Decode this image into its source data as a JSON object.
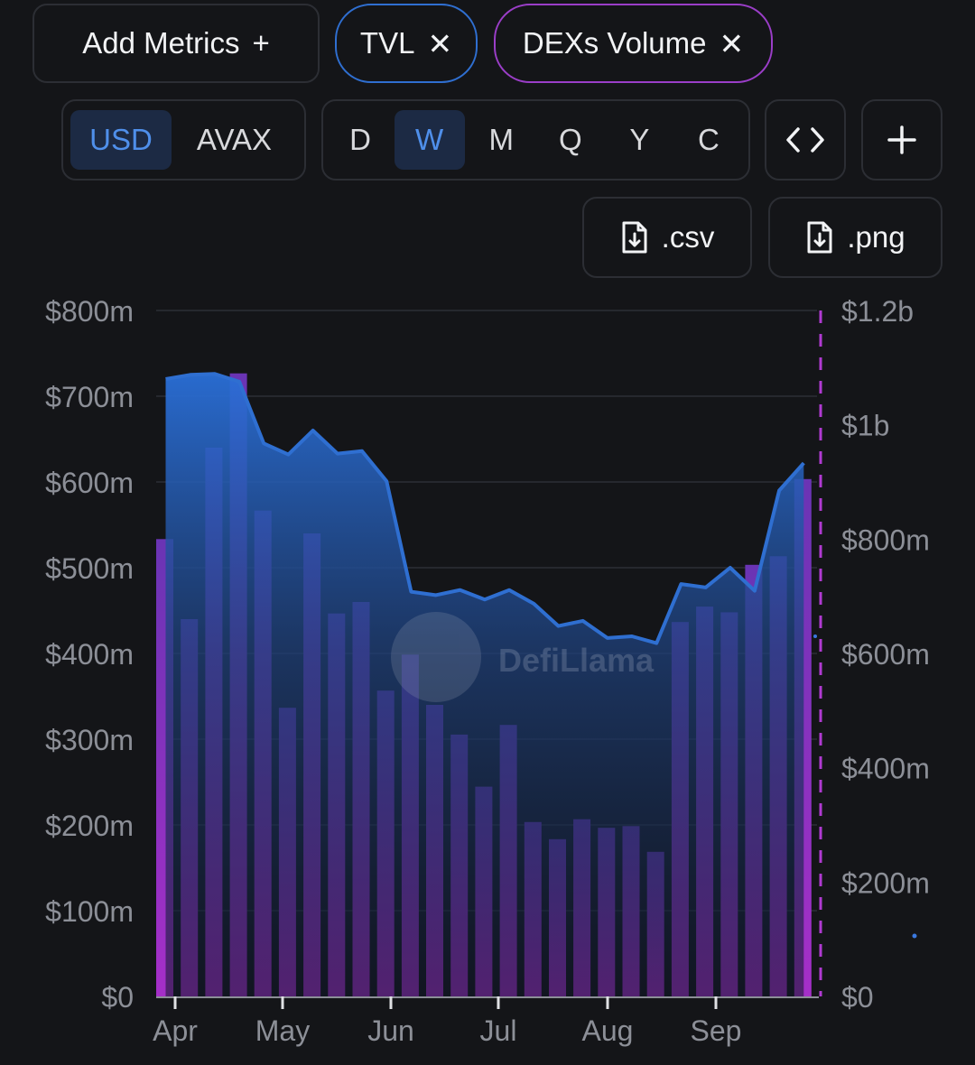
{
  "controls": {
    "add_metrics_label": "Add Metrics",
    "metric_pills": [
      {
        "label": "TVL",
        "color": "#2f6fd1"
      },
      {
        "label": "DEXs Volume",
        "color": "#9b3ec8"
      }
    ],
    "denominations": [
      "USD",
      "AVAX"
    ],
    "denomination_selected": "USD",
    "intervals": [
      "D",
      "W",
      "M",
      "Q",
      "Y",
      "C"
    ],
    "interval_selected": "W",
    "export_csv_label": ".csv",
    "export_png_label": ".png"
  },
  "watermark": "DefiLlama",
  "chart_data": {
    "type": "bar+area",
    "x_ticks": [
      "Apr",
      "May",
      "Jun",
      "Jul",
      "Aug",
      "Sep"
    ],
    "left_axis": {
      "ticks": [
        "$0",
        "$100m",
        "$200m",
        "$300m",
        "$400m",
        "$500m",
        "$600m",
        "$700m",
        "$800m"
      ],
      "range": [
        0,
        800000000
      ]
    },
    "right_axis": {
      "ticks": [
        "$0",
        "$200m",
        "$400m",
        "$600m",
        "$800m",
        "$1b",
        "$1.2b"
      ],
      "range": [
        0,
        1200000000
      ]
    },
    "grid": true,
    "series": [
      {
        "name": "TVL",
        "type": "area",
        "axis": "left",
        "color": "#2f6fd1",
        "values": [
          720,
          725,
          726,
          717,
          645,
          632,
          660,
          633,
          636,
          601,
          472,
          468,
          474,
          463,
          474,
          458,
          432,
          438,
          418,
          420,
          412,
          481,
          477,
          500,
          473,
          590,
          622
        ]
      },
      {
        "name": "DEXs Volume",
        "type": "bar",
        "axis": "right",
        "color": "#9b3ec8",
        "values": [
          800,
          660,
          960,
          1090,
          850,
          505,
          810,
          670,
          690,
          535,
          598,
          510,
          458,
          367,
          475,
          305,
          275,
          310,
          295,
          298,
          253,
          655,
          682,
          672,
          755,
          770,
          905
        ]
      }
    ],
    "series_units": "millions USD"
  }
}
